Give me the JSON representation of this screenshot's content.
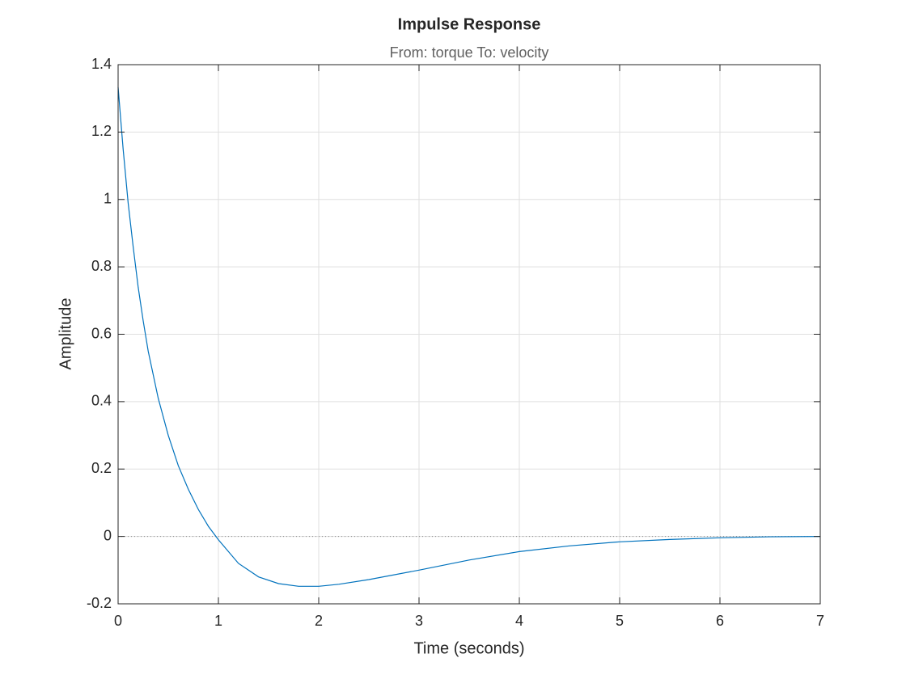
{
  "chart_data": {
    "type": "line",
    "title": "Impulse Response",
    "subtitle": "From: torque  To: velocity",
    "x_label": "Time (seconds)",
    "y_label": "Amplitude",
    "x": [
      0,
      0.05,
      0.1,
      0.15,
      0.2,
      0.25,
      0.3,
      0.4,
      0.5,
      0.6,
      0.7,
      0.8,
      0.9,
      1.0,
      1.2,
      1.4,
      1.6,
      1.8,
      2.0,
      2.2,
      2.5,
      3.0,
      3.5,
      4.0,
      4.5,
      5.0,
      5.5,
      6.0,
      6.5,
      7.0
    ],
    "series": [
      {
        "name": "velocity",
        "color": "#0072bd",
        "values": [
          1.333,
          1.15,
          0.99,
          0.86,
          0.74,
          0.64,
          0.55,
          0.41,
          0.3,
          0.21,
          0.14,
          0.08,
          0.03,
          -0.01,
          -0.08,
          -0.12,
          -0.14,
          -0.148,
          -0.148,
          -0.142,
          -0.128,
          -0.1,
          -0.07,
          -0.045,
          -0.028,
          -0.016,
          -0.009,
          -0.004,
          -0.001,
          0
        ]
      }
    ],
    "xlim": [
      0,
      7
    ],
    "xticks": [
      0,
      1,
      2,
      3,
      4,
      5,
      6,
      7
    ],
    "ylim": [
      -0.2,
      1.4
    ],
    "yticks": [
      -0.2,
      0,
      0.2,
      0.4,
      0.6,
      0.8,
      1,
      1.2,
      1.4
    ],
    "grid": true
  }
}
